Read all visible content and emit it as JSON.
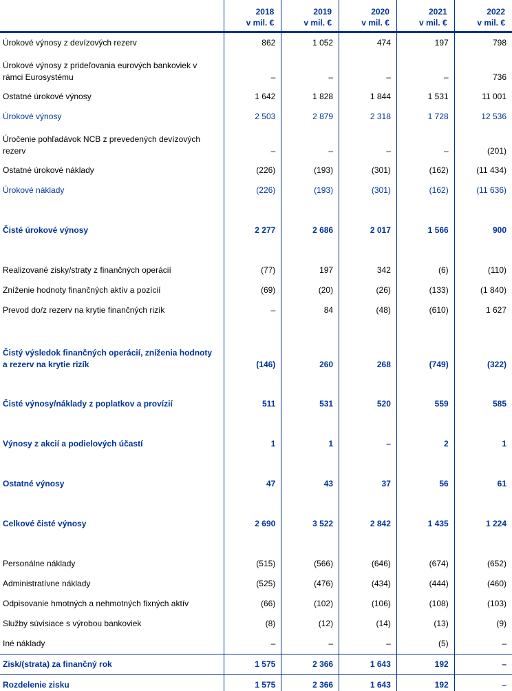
{
  "header": {
    "columns": [
      {
        "year": "2018",
        "unit": "v mil. €"
      },
      {
        "year": "2019",
        "unit": "v mil. €"
      },
      {
        "year": "2020",
        "unit": "v mil. €"
      },
      {
        "year": "2021",
        "unit": "v mil. €"
      },
      {
        "year": "2022",
        "unit": "v mil. €"
      }
    ]
  },
  "rows": [
    {
      "label": "Úrokové výnosy z devízových rezerv",
      "style": "normal",
      "values": [
        "862",
        "1 052",
        "474",
        "197",
        "798"
      ]
    },
    {
      "label": "Úrokové výnosy z prideľovania eurových bankoviek v rámci Eurosystému",
      "style": "normal",
      "lines": 2,
      "values": [
        "–",
        "–",
        "–",
        "–",
        "736"
      ]
    },
    {
      "label": "Ostatné úrokové výnosy",
      "style": "normal",
      "values": [
        "1 642",
        "1 828",
        "1 844",
        "1 531",
        "11 001"
      ]
    },
    {
      "label": "Úrokové výnosy",
      "style": "sub",
      "values": [
        "2 503",
        "2 879",
        "2 318",
        "1 728",
        "12 536"
      ]
    },
    {
      "label": "Úročenie pohľadávok NCB z prevedených devízových rezerv",
      "style": "normal",
      "lines": 2,
      "values": [
        "–",
        "–",
        "–",
        "–",
        "(201)"
      ]
    },
    {
      "label": "Ostatné úrokové náklady",
      "style": "normal",
      "values": [
        "(226)",
        "(193)",
        "(301)",
        "(162)",
        "(11 434)"
      ]
    },
    {
      "label": "Úrokové náklady",
      "style": "sub",
      "values": [
        "(226)",
        "(193)",
        "(301)",
        "(162)",
        "(11 636)"
      ]
    },
    {
      "label": "Čisté úrokové výnosy",
      "style": "total",
      "values": [
        "2 277",
        "2 686",
        "2 017",
        "1 566",
        "900"
      ]
    },
    {
      "label": "Realizované zisky/straty z finančných operácií",
      "style": "normal",
      "values": [
        "(77)",
        "197",
        "342",
        "(6)",
        "(110)"
      ]
    },
    {
      "label": "Zníženie hodnoty finančných aktív a pozícií",
      "style": "normal",
      "values": [
        "(69)",
        "(20)",
        "(26)",
        "(133)",
        "(1 840)"
      ]
    },
    {
      "label": "Prevod do/z rezerv na krytie finančných rizík",
      "style": "normal",
      "values": [
        "–",
        "84",
        "(48)",
        "(610)",
        "1 627"
      ]
    },
    {
      "label": "Čistý výsledok finančných operácií, zníženia hodnoty a rezerv na krytie rizík",
      "style": "total",
      "lines": 2,
      "values": [
        "(146)",
        "260",
        "268",
        "(749)",
        "(322)"
      ]
    },
    {
      "label": "Čisté výnosy/náklady z poplatkov a provízií",
      "style": "total",
      "values": [
        "511",
        "531",
        "520",
        "559",
        "585"
      ]
    },
    {
      "label": "Výnosy z akcií a podielových účastí",
      "style": "total",
      "values": [
        "1",
        "1",
        "–",
        "2",
        "1"
      ]
    },
    {
      "label": "Ostatné výnosy",
      "style": "total",
      "values": [
        "47",
        "43",
        "37",
        "56",
        "61"
      ]
    },
    {
      "label": "Celkové čisté výnosy",
      "style": "total",
      "values": [
        "2 690",
        "3 522",
        "2 842",
        "1 435",
        "1 224"
      ]
    },
    {
      "label": "Personálne náklady",
      "style": "normal",
      "values": [
        "(515)",
        "(566)",
        "(646)",
        "(674)",
        "(652)"
      ]
    },
    {
      "label": "Administratívne náklady",
      "style": "normal",
      "values": [
        "(525)",
        "(476)",
        "(434)",
        "(444)",
        "(460)"
      ]
    },
    {
      "label": "Odpisovanie hmotných a nehmotných fixných aktív",
      "style": "normal",
      "values": [
        "(66)",
        "(102)",
        "(106)",
        "(108)",
        "(103)"
      ]
    },
    {
      "label": "Služby súvisiace s výrobou bankoviek",
      "style": "normal",
      "values": [
        "(8)",
        "(12)",
        "(14)",
        "(13)",
        "(9)"
      ]
    },
    {
      "label": "Iné náklady",
      "style": "normal",
      "values": [
        "–",
        "–",
        "–",
        "(5)",
        "–"
      ]
    },
    {
      "label": "Zisk/(strata) za finančný rok",
      "style": "final",
      "values": [
        "1 575",
        "2 366",
        "1 643",
        "192",
        "–"
      ]
    },
    {
      "label": "Rozdelenie zisku",
      "style": "final",
      "values": [
        "1 575",
        "2 366",
        "1 643",
        "192",
        "–"
      ]
    }
  ],
  "colors": {
    "accent": "#003299"
  }
}
